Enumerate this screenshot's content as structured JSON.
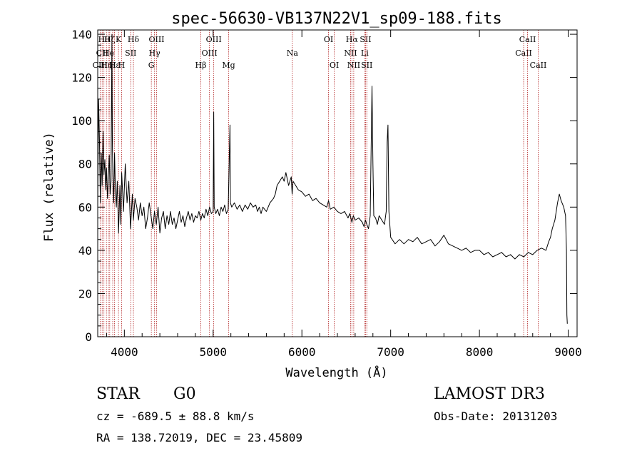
{
  "chart_data": {
    "type": "line",
    "title": "spec-56630-VB137N22V1_sp09-188.fits",
    "xlabel": "Wavelength (Å)",
    "ylabel": "Flux (relative)",
    "xlim": [
      3700,
      9100
    ],
    "ylim": [
      0,
      142
    ],
    "x_ticks": [
      4000,
      5000,
      6000,
      7000,
      8000,
      9000
    ],
    "y_ticks": [
      0,
      20,
      40,
      60,
      80,
      100,
      120,
      140
    ],
    "grid": false,
    "line_color": "#000000",
    "marker_color": "#b22222",
    "series": [
      {
        "name": "flux",
        "points": [
          [
            3700,
            60
          ],
          [
            3710,
            110
          ],
          [
            3720,
            90
          ],
          [
            3730,
            62
          ],
          [
            3740,
            85
          ],
          [
            3750,
            70
          ],
          [
            3760,
            95
          ],
          [
            3770,
            75
          ],
          [
            3780,
            82
          ],
          [
            3790,
            68
          ],
          [
            3800,
            78
          ],
          [
            3810,
            64
          ],
          [
            3820,
            74
          ],
          [
            3830,
            84
          ],
          [
            3840,
            66
          ],
          [
            3850,
            72
          ],
          [
            3860,
            140
          ],
          [
            3865,
            90
          ],
          [
            3870,
            75
          ],
          [
            3880,
            62
          ],
          [
            3890,
            85
          ],
          [
            3900,
            66
          ],
          [
            3910,
            60
          ],
          [
            3920,
            72
          ],
          [
            3935,
            48
          ],
          [
            3950,
            70
          ],
          [
            3960,
            52
          ],
          [
            3970,
            76
          ],
          [
            3990,
            58
          ],
          [
            4010,
            80
          ],
          [
            4030,
            62
          ],
          [
            4050,
            72
          ],
          [
            4070,
            50
          ],
          [
            4090,
            66
          ],
          [
            4102,
            54
          ],
          [
            4120,
            64
          ],
          [
            4140,
            60
          ],
          [
            4160,
            54
          ],
          [
            4180,
            62
          ],
          [
            4200,
            56
          ],
          [
            4220,
            60
          ],
          [
            4240,
            50
          ],
          [
            4260,
            55
          ],
          [
            4280,
            62
          ],
          [
            4300,
            56
          ],
          [
            4320,
            50
          ],
          [
            4340,
            58
          ],
          [
            4360,
            52
          ],
          [
            4380,
            60
          ],
          [
            4400,
            48
          ],
          [
            4420,
            55
          ],
          [
            4440,
            58
          ],
          [
            4460,
            50
          ],
          [
            4480,
            56
          ],
          [
            4500,
            52
          ],
          [
            4520,
            58
          ],
          [
            4540,
            52
          ],
          [
            4560,
            55
          ],
          [
            4580,
            50
          ],
          [
            4600,
            54
          ],
          [
            4620,
            58
          ],
          [
            4640,
            53
          ],
          [
            4660,
            56
          ],
          [
            4680,
            51
          ],
          [
            4700,
            55
          ],
          [
            4720,
            58
          ],
          [
            4740,
            54
          ],
          [
            4760,
            57
          ],
          [
            4780,
            53
          ],
          [
            4800,
            56
          ],
          [
            4820,
            55
          ],
          [
            4840,
            58
          ],
          [
            4861,
            54
          ],
          [
            4880,
            57
          ],
          [
            4900,
            55
          ],
          [
            4920,
            59
          ],
          [
            4940,
            56
          ],
          [
            4960,
            60
          ],
          [
            4980,
            57
          ],
          [
            5000,
            58
          ],
          [
            5007,
            104
          ],
          [
            5012,
            60
          ],
          [
            5030,
            57
          ],
          [
            5050,
            59
          ],
          [
            5070,
            56
          ],
          [
            5090,
            60
          ],
          [
            5110,
            58
          ],
          [
            5130,
            61
          ],
          [
            5150,
            57
          ],
          [
            5170,
            59
          ],
          [
            5190,
            98
          ],
          [
            5195,
            62
          ],
          [
            5210,
            60
          ],
          [
            5240,
            62
          ],
          [
            5270,
            59
          ],
          [
            5300,
            61
          ],
          [
            5330,
            58
          ],
          [
            5360,
            61
          ],
          [
            5390,
            59
          ],
          [
            5420,
            62
          ],
          [
            5450,
            60
          ],
          [
            5480,
            61
          ],
          [
            5500,
            58
          ],
          [
            5520,
            60
          ],
          [
            5540,
            57
          ],
          [
            5560,
            60
          ],
          [
            5600,
            58
          ],
          [
            5640,
            62
          ],
          [
            5680,
            64
          ],
          [
            5700,
            66
          ],
          [
            5720,
            70
          ],
          [
            5750,
            72
          ],
          [
            5780,
            74
          ],
          [
            5800,
            72
          ],
          [
            5820,
            76
          ],
          [
            5850,
            70
          ],
          [
            5880,
            74
          ],
          [
            5890,
            66
          ],
          [
            5900,
            72
          ],
          [
            5930,
            70
          ],
          [
            5960,
            68
          ],
          [
            6000,
            67
          ],
          [
            6040,
            65
          ],
          [
            6080,
            66
          ],
          [
            6120,
            63
          ],
          [
            6160,
            64
          ],
          [
            6200,
            62
          ],
          [
            6240,
            61
          ],
          [
            6280,
            60
          ],
          [
            6300,
            63
          ],
          [
            6320,
            59
          ],
          [
            6360,
            60
          ],
          [
            6400,
            58
          ],
          [
            6440,
            57
          ],
          [
            6480,
            58
          ],
          [
            6520,
            55
          ],
          [
            6540,
            57
          ],
          [
            6563,
            53
          ],
          [
            6580,
            56
          ],
          [
            6600,
            54
          ],
          [
            6640,
            55
          ],
          [
            6680,
            53
          ],
          [
            6700,
            51
          ],
          [
            6716,
            54
          ],
          [
            6731,
            52
          ],
          [
            6750,
            50
          ],
          [
            6770,
            56
          ],
          [
            6790,
            116
          ],
          [
            6800,
            80
          ],
          [
            6810,
            56
          ],
          [
            6830,
            55
          ],
          [
            6850,
            52
          ],
          [
            6870,
            56
          ],
          [
            6900,
            54
          ],
          [
            6930,
            52
          ],
          [
            6950,
            58
          ],
          [
            6960,
            90
          ],
          [
            6970,
            98
          ],
          [
            6980,
            58
          ],
          [
            7000,
            46
          ],
          [
            7050,
            43
          ],
          [
            7100,
            45
          ],
          [
            7150,
            43
          ],
          [
            7200,
            45
          ],
          [
            7250,
            44
          ],
          [
            7300,
            46
          ],
          [
            7350,
            43
          ],
          [
            7400,
            44
          ],
          [
            7450,
            45
          ],
          [
            7500,
            42
          ],
          [
            7550,
            44
          ],
          [
            7600,
            47
          ],
          [
            7650,
            43
          ],
          [
            7700,
            42
          ],
          [
            7750,
            41
          ],
          [
            7800,
            40
          ],
          [
            7850,
            41
          ],
          [
            7900,
            39
          ],
          [
            7950,
            40
          ],
          [
            8000,
            40
          ],
          [
            8050,
            38
          ],
          [
            8100,
            39
          ],
          [
            8150,
            37
          ],
          [
            8200,
            38
          ],
          [
            8250,
            39
          ],
          [
            8300,
            37
          ],
          [
            8350,
            38
          ],
          [
            8400,
            36
          ],
          [
            8450,
            38
          ],
          [
            8500,
            37
          ],
          [
            8550,
            39
          ],
          [
            8600,
            38
          ],
          [
            8650,
            40
          ],
          [
            8700,
            41
          ],
          [
            8750,
            40
          ],
          [
            8780,
            44
          ],
          [
            8800,
            46
          ],
          [
            8820,
            50
          ],
          [
            8850,
            54
          ],
          [
            8880,
            62
          ],
          [
            8900,
            66
          ],
          [
            8920,
            63
          ],
          [
            8950,
            60
          ],
          [
            8970,
            56
          ],
          [
            8980,
            40
          ],
          [
            8985,
            10
          ],
          [
            8990,
            6
          ]
        ]
      }
    ],
    "line_markers": [
      {
        "wl": 3727,
        "label": "CIII",
        "row": 2
      },
      {
        "wl": 3750,
        "label": "CII",
        "row": 1
      },
      {
        "wl": 3770,
        "label": "Hθ",
        "row": 0
      },
      {
        "wl": 3798,
        "label": "Hη",
        "row": 2
      },
      {
        "wl": 3820,
        "label": "He",
        "row": 1
      },
      {
        "wl": 3835,
        "label": "Hζ",
        "row": 0
      },
      {
        "wl": 3869,
        "label": "H",
        "row": 2
      },
      {
        "wl": 3889,
        "label": "Hε",
        "row": 2
      },
      {
        "wl": 3934,
        "label": "K",
        "row": 0
      },
      {
        "wl": 3969,
        "label": "H",
        "row": 2
      },
      {
        "wl": 4072,
        "label": "SII",
        "row": 1
      },
      {
        "wl": 4102,
        "label": "Hδ",
        "row": 0
      },
      {
        "wl": 4304,
        "label": "G",
        "row": 2
      },
      {
        "wl": 4340,
        "label": "Hγ",
        "row": 1
      },
      {
        "wl": 4363,
        "label": "OIII",
        "row": 0
      },
      {
        "wl": 4861,
        "label": "Hβ",
        "row": 2
      },
      {
        "wl": 4959,
        "label": "OIII",
        "row": 1
      },
      {
        "wl": 5007,
        "label": "OIII",
        "row": 0
      },
      {
        "wl": 5175,
        "label": "Mg",
        "row": 2
      },
      {
        "wl": 5892,
        "label": "Na",
        "row": 1
      },
      {
        "wl": 6300,
        "label": "OI",
        "row": 0
      },
      {
        "wl": 6364,
        "label": "OI",
        "row": 2
      },
      {
        "wl": 6548,
        "label": "NII",
        "row": 1
      },
      {
        "wl": 6563,
        "label": "Hα",
        "row": 0
      },
      {
        "wl": 6584,
        "label": "NII",
        "row": 2
      },
      {
        "wl": 6708,
        "label": "Li",
        "row": 1
      },
      {
        "wl": 6717,
        "label": "SII",
        "row": 0
      },
      {
        "wl": 6731,
        "label": "SII",
        "row": 2
      },
      {
        "wl": 8498,
        "label": "CaII",
        "row": 1
      },
      {
        "wl": 8542,
        "label": "CaII",
        "row": 0
      },
      {
        "wl": 8662,
        "label": "CaII",
        "row": 2
      }
    ]
  },
  "info": {
    "class_label": "STAR",
    "subclass_label": "G0",
    "cz": "cz = -689.5 ± 88.8 km/s",
    "coords": "RA = 138.72019, DEC =  23.45809",
    "survey": "LAMOST DR3",
    "obs_date": "Obs-Date: 20131203"
  }
}
